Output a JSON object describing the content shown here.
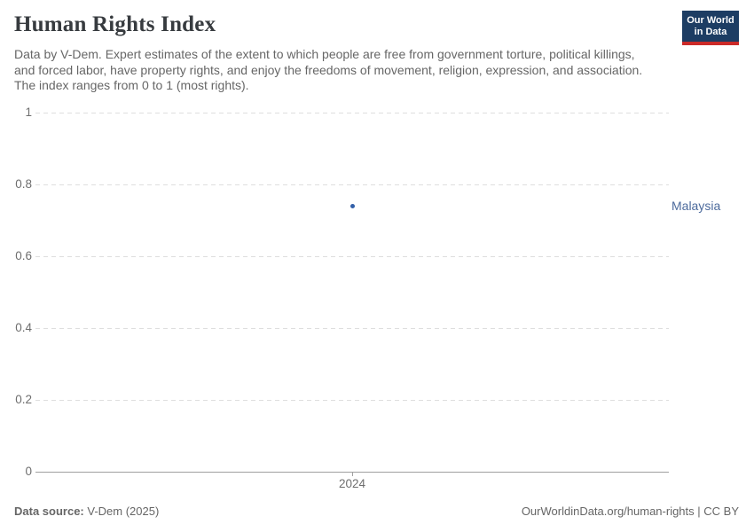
{
  "header": {
    "title": "Human Rights Index",
    "subtitle": "Data by V-Dem. Expert estimates of the extent to which people are free from government torture, political killings, and forced labor, have property rights, and enjoy the freedoms of movement, religion, expression, and association. The index ranges from 0 to 1 (most rights).",
    "logo": {
      "line1": "Our World",
      "line2": "in Data",
      "bg_color": "#1d3d63",
      "accent_color": "#cb2a28"
    }
  },
  "chart_data": {
    "type": "scatter",
    "title": "Human Rights Index",
    "x": [
      2024
    ],
    "series": [
      {
        "name": "Malaysia",
        "values": [
          0.74
        ],
        "color": "#3360a9",
        "label_color": "#4c6a9c"
      }
    ],
    "ylim": [
      0,
      1
    ],
    "yticks": [
      0,
      0.2,
      0.4,
      0.6,
      0.8,
      1
    ],
    "ytick_labels": [
      "0",
      "0.2",
      "0.4",
      "0.6",
      "0.8",
      "1"
    ],
    "xtick_labels": [
      "2024"
    ],
    "xlabel": "",
    "ylabel": "",
    "grid": "horizontal-dashed",
    "legend_position": "right-entity-label",
    "gridline_color": "#dedede",
    "axis_color": "#a0a0a0",
    "tick_label_color": "#6e6e6e"
  },
  "footer": {
    "source_label": "Data source:",
    "source_value": " V-Dem (2025)",
    "right": {
      "link": "OurWorldinData.org/human-rights",
      "rest": " | CC BY"
    }
  }
}
